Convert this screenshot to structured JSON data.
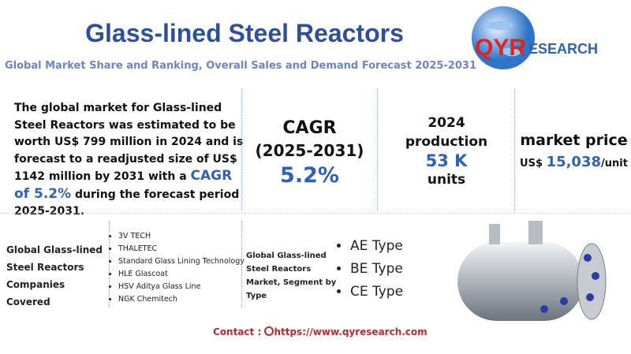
{
  "header": {
    "title": "Glass-lined Steel Reactors",
    "subtitle": "Global Market Share and Ranking, Overall Sales and Demand Forecast 2025-2031",
    "logo": {
      "brand": "QYR",
      "rest": "ESEARCH"
    }
  },
  "summary": {
    "text_before": "The global market for Glass-lined Steel Reactors was estimated to be worth US$ 799 million in 2024 and is forecast to a readjusted size of US$ 1142 million by 2031 with a",
    "highlight": "CAGR of 5.2%",
    "text_after": "during the forecast period 2025-2031."
  },
  "cagr": {
    "label": "CAGR",
    "period": "(2025-2031)",
    "value": "5.2%"
  },
  "production": {
    "year": "2024",
    "label": "production",
    "value": "53 K",
    "unit": "units"
  },
  "price": {
    "label": "market price",
    "currency": "US$",
    "value": "15,038",
    "unit": "/unit"
  },
  "companies": {
    "heading": "Global Glass-lined Steel Reactors Companies Covered",
    "items": [
      "3V TECH",
      "THALETEC",
      "Standard Glass Lining Technology",
      "HLE Glascoat",
      "HSV Aditya Glass Line",
      "NGK Chemitech"
    ]
  },
  "segment": {
    "heading": "Global Glass-lined Steel Reactors Market, Segment by Type",
    "types": [
      "AE Type",
      "BE Type",
      "CE Type"
    ]
  },
  "contact": {
    "label": "Contact :",
    "url": "https://www.qyresearch.com"
  }
}
